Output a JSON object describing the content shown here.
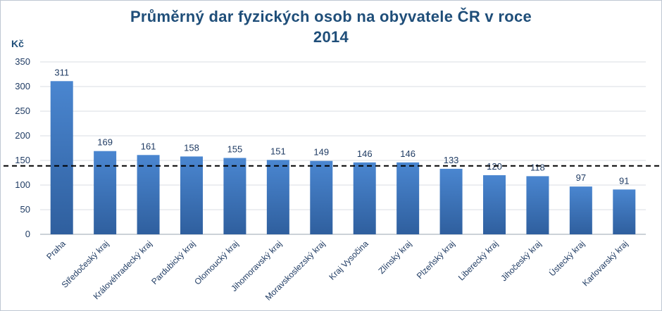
{
  "chart_data": {
    "type": "bar",
    "title_lines": [
      "Průměrný dar fyzických osob na obyvatele ČR v roce",
      "2014"
    ],
    "ylabel": "Kč",
    "ylim": [
      0,
      350
    ],
    "y_ticks": [
      0,
      50,
      100,
      150,
      200,
      250,
      300,
      350
    ],
    "grid": true,
    "reference_line": {
      "value": 139,
      "style": "dashed",
      "color": "#000000"
    },
    "bar_color_top": "#4a86d0",
    "bar_color_bottom": "#2f5f9e",
    "categories": [
      "Praha",
      "Středočeský kraj",
      "Královéhradecký kraj",
      "Pardubický kraj",
      "Olomoucký kraj",
      "Jihomoravský kraj",
      "Moravskoslezský kraj",
      "Kraj Vysočina",
      "Zlínský kraj",
      "Plzeňský kraj",
      "Liberecký kraj",
      "Jihočeský kraj",
      "Ústecký kraj",
      "Karlovarský kraj"
    ],
    "values": [
      311,
      169,
      161,
      158,
      155,
      151,
      149,
      146,
      146,
      133,
      120,
      118,
      97,
      91
    ]
  }
}
